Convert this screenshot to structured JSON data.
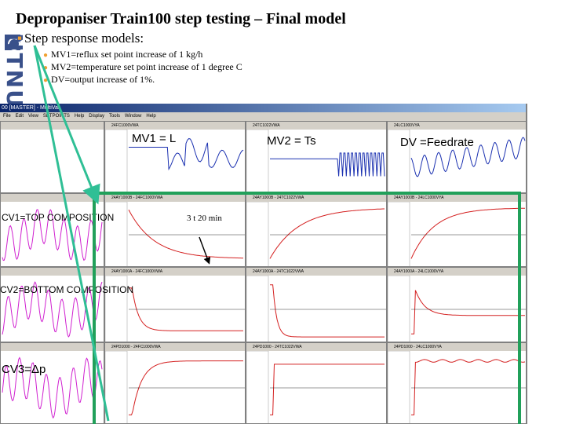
{
  "slide": {
    "title": "Depropaniser Train100 step testing – Final model",
    "bullet": "Step response models:",
    "sub_bullets": [
      "MV1=reflux set point increase of 1 kg/h",
      "MV2=temperature set point increase of 1 degree C",
      "DV=output increase of 1%."
    ],
    "logo_text": "NTNU"
  },
  "window": {
    "title": "00 [MASTER] - MultiVar",
    "menu": [
      "File",
      "Edit",
      "View",
      "SETPOINTS",
      "Help",
      "Display",
      "Tools",
      "Window",
      "Help"
    ]
  },
  "columns": [
    {
      "header": "24FC1000VWA",
      "label": "MV1 = L"
    },
    {
      "header": "24TC1022VWA",
      "label": "MV2 = Ts"
    },
    {
      "header": "24LC1000VYA",
      "label": "DV =Feedrate"
    }
  ],
  "rows": [
    {
      "label": "CV1=TOP COMPOSITION",
      "headers": [
        "24AY1000B - 24FC1000VWA",
        "24AY1000B - 24TC1022VWA",
        "24AY1000B - 24LC1000VYA"
      ]
    },
    {
      "label": "CV2=BOTTOM COMPOSITION",
      "headers": [
        "24AY1000A - 24FC1000VWA",
        "24AY1000A - 24TC1022VWA",
        "24AY1000A - 24LC1000VYA"
      ]
    },
    {
      "label": "CV3=Δp",
      "headers": [
        "24PD1000 - 24FC1000VWA",
        "24PD1000 - 24TC1022VWA",
        "24PD1000 - 24LC1000VYA"
      ]
    }
  ],
  "annotation": "3 t 20 min",
  "colors": {
    "arrow": "#2fbf95",
    "highlight_box": "#21a05a",
    "step_curve": "#d42020",
    "mv_trend": "#1a30b0",
    "cv_trend": "#d020d0",
    "logo": "#39508a"
  },
  "icons": [
    "step-response-arrow-icon"
  ]
}
